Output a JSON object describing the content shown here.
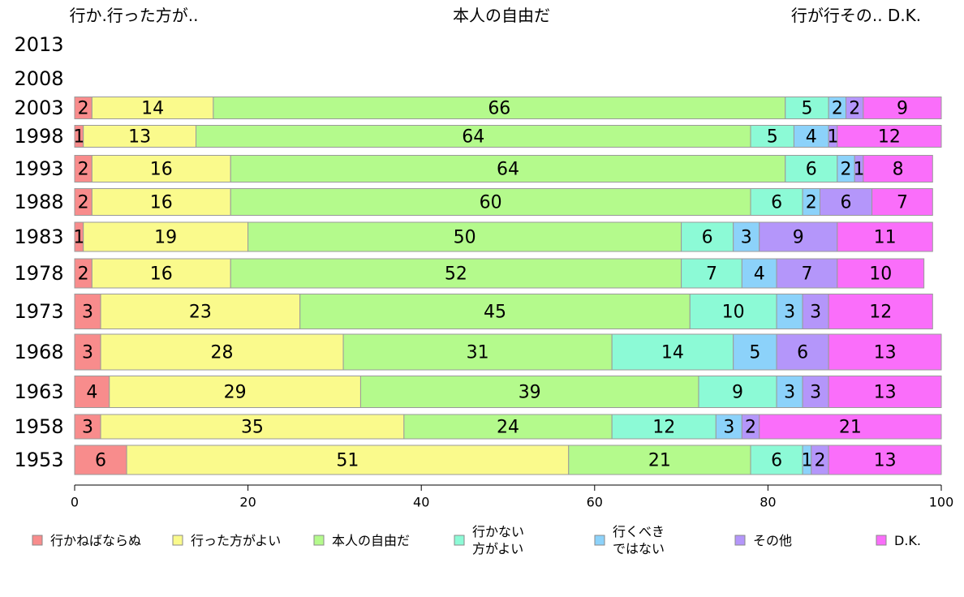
{
  "chart_data": {
    "type": "bar",
    "orientation": "horizontal",
    "stacked": true,
    "xlim": [
      0,
      100
    ],
    "x_ticks": [
      0,
      20,
      40,
      60,
      80,
      100
    ],
    "top_labels": [
      "行か.行った方が..",
      "本人の自由だ",
      "行が行その.. D.K."
    ],
    "categories": [
      "2013",
      "2008",
      "2003",
      "1998",
      "1993",
      "1988",
      "1983",
      "1978",
      "1973",
      "1968",
      "1963",
      "1958",
      "1953"
    ],
    "series": [
      {
        "name": "行かねばならぬ",
        "color": "#f88c8c",
        "values": [
          null,
          null,
          2,
          1,
          2,
          2,
          1,
          2,
          3,
          3,
          4,
          3,
          6
        ]
      },
      {
        "name": "行った方がよい",
        "color": "#fafa8c",
        "values": [
          null,
          null,
          14,
          13,
          16,
          16,
          19,
          16,
          23,
          28,
          29,
          35,
          51
        ]
      },
      {
        "name": "本人の自由だ",
        "color": "#b4fa8c",
        "values": [
          null,
          null,
          66,
          64,
          64,
          60,
          50,
          52,
          45,
          31,
          39,
          24,
          21
        ]
      },
      {
        "name": "行かない\n方がよい",
        "color": "#8cfad6",
        "values": [
          null,
          null,
          5,
          5,
          6,
          6,
          6,
          7,
          10,
          14,
          9,
          12,
          6
        ]
      },
      {
        "name": "行くべき\nではない",
        "color": "#8cd2fa",
        "values": [
          null,
          null,
          2,
          4,
          2,
          2,
          3,
          4,
          3,
          5,
          3,
          3,
          1
        ]
      },
      {
        "name": "その他",
        "color": "#b496fa",
        "values": [
          null,
          null,
          2,
          1,
          1,
          6,
          9,
          7,
          3,
          6,
          3,
          2,
          2
        ]
      },
      {
        "name": "D.K.",
        "color": "#fa6efa",
        "values": [
          null,
          null,
          9,
          12,
          8,
          7,
          11,
          10,
          12,
          13,
          13,
          21,
          13
        ]
      }
    ],
    "legend_position": "bottom",
    "grid": false
  }
}
